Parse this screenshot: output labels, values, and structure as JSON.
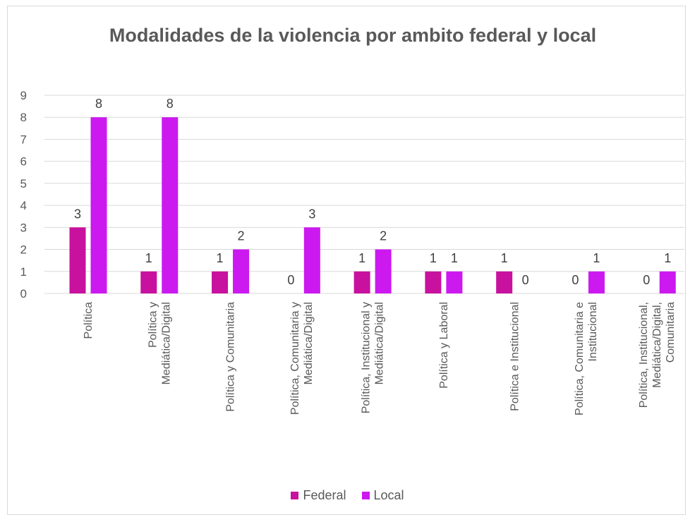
{
  "chart_data": {
    "type": "bar",
    "title": "Modalidades de la violencia por ambito federal y local",
    "xlabel": "",
    "ylabel": "",
    "ylim": [
      0,
      9
    ],
    "yticks": [
      0,
      1,
      2,
      3,
      4,
      5,
      6,
      7,
      8,
      9
    ],
    "grid": true,
    "legend_position": "bottom",
    "categories": [
      "Política",
      "Política y Mediática/Digital",
      "Política y Comunitaria",
      "Política, Comunitaria y Mediática/Digital",
      "Política, Institucional y Mediática/Digital",
      "Política y Laboral",
      "Política e Institucional",
      "Política, Comunitaria e Institucional",
      "Política, Institucional, Mediática/Digital, Comunitaria"
    ],
    "category_lines": [
      [
        "Política"
      ],
      [
        "Política y",
        "Mediática/Digital"
      ],
      [
        "Política y Comunitaria"
      ],
      [
        "Política, Comunitaria y",
        "Mediática/Digital"
      ],
      [
        "Política, Institucional y",
        "Mediática/Digital"
      ],
      [
        "Política y Laboral"
      ],
      [
        "Política e Institucional"
      ],
      [
        "Política, Comunitaria e",
        "Institucional"
      ],
      [
        "Política, Institucional,",
        "Mediática/Digital,",
        "Comunitaria"
      ]
    ],
    "series": [
      {
        "name": "Federal",
        "color": "#c8119e",
        "values": [
          3,
          1,
          1,
          0,
          1,
          1,
          1,
          0,
          0
        ]
      },
      {
        "name": "Local",
        "color": "#cc19f0",
        "values": [
          8,
          8,
          2,
          3,
          2,
          1,
          0,
          1,
          1
        ]
      }
    ]
  }
}
